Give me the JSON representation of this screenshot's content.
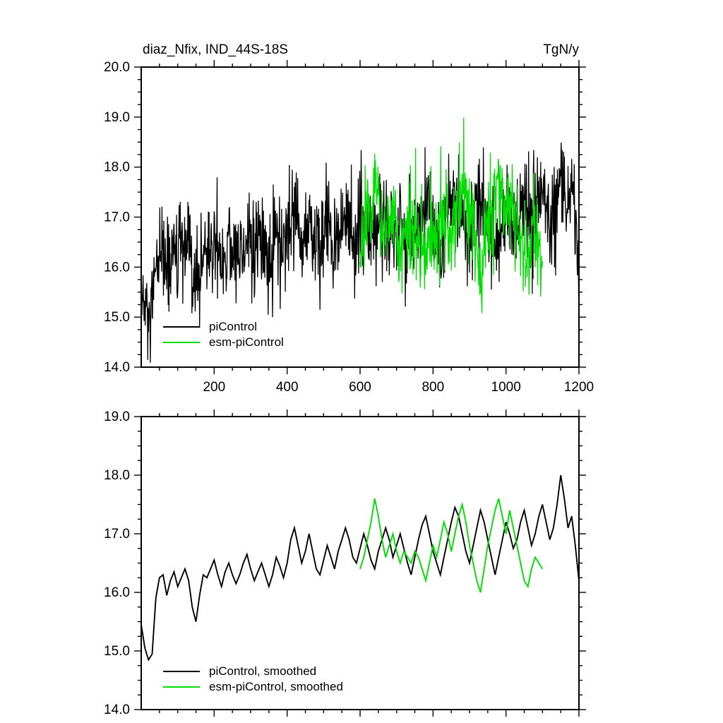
{
  "page": {
    "background": "#ffffff"
  },
  "chart_data": {
    "type": "line",
    "figure_title": "diaz_Nfix, IND_44S-18S",
    "units": "TgN/y",
    "colors": {
      "piControl": "#000000",
      "esm_piControl": "#00DE00"
    },
    "series_data": {
      "piControl_smoothed": {
        "x_start": 0,
        "x_step": 10,
        "values": [
          15.45,
          15.05,
          14.85,
          14.95,
          15.9,
          16.25,
          16.3,
          15.95,
          16.2,
          16.35,
          16.1,
          16.25,
          16.4,
          16.2,
          15.75,
          15.5,
          15.95,
          16.3,
          16.25,
          16.4,
          16.55,
          16.3,
          16.1,
          16.35,
          16.5,
          16.3,
          16.15,
          16.3,
          16.5,
          16.65,
          16.4,
          16.2,
          16.35,
          16.5,
          16.3,
          16.1,
          16.3,
          16.6,
          16.45,
          16.25,
          16.5,
          16.9,
          17.1,
          16.8,
          16.5,
          16.7,
          17.0,
          16.7,
          16.4,
          16.3,
          16.55,
          16.8,
          16.6,
          16.4,
          16.7,
          16.9,
          17.1,
          16.9,
          16.6,
          16.5,
          16.75,
          17.0,
          16.8,
          16.55,
          16.4,
          16.7,
          16.9,
          17.1,
          16.9,
          16.6,
          16.8,
          17.0,
          16.75,
          16.5,
          16.3,
          16.6,
          16.9,
          17.15,
          17.3,
          17.0,
          16.7,
          16.5,
          16.3,
          16.6,
          16.9,
          17.2,
          17.45,
          17.3,
          17.0,
          16.7,
          16.5,
          16.8,
          17.1,
          17.4,
          17.2,
          16.9,
          16.6,
          16.3,
          16.6,
          16.9,
          17.2,
          17.0,
          16.75,
          16.9,
          17.2,
          17.4,
          17.1,
          16.8,
          17.0,
          17.3,
          17.5,
          17.2,
          16.9,
          17.1,
          17.5,
          18.0,
          17.6,
          17.1,
          17.3,
          16.8,
          16.2
        ]
      },
      "esm_piControl_smoothed": {
        "x_start": 600,
        "x_step": 10,
        "values": [
          16.4,
          16.6,
          16.9,
          17.2,
          17.6,
          17.3,
          16.9,
          16.6,
          16.8,
          17.0,
          16.7,
          16.5,
          16.7,
          16.6,
          16.5,
          16.7,
          16.6,
          16.4,
          16.2,
          16.5,
          16.8,
          16.6,
          16.9,
          17.2,
          17.0,
          16.7,
          17.0,
          17.3,
          17.5,
          17.2,
          16.8,
          16.5,
          16.2,
          16.0,
          16.4,
          16.8,
          17.1,
          17.4,
          17.6,
          17.3,
          17.0,
          17.4,
          17.1,
          16.8,
          16.5,
          16.2,
          16.1,
          16.4,
          16.6,
          16.5,
          16.4
        ]
      }
    },
    "panels": [
      {
        "name": "raw",
        "title_left": "diaz_Nfix, IND_44S-18S",
        "title_right": "TgN/y",
        "x_axis": {
          "min": 0,
          "max": 1200,
          "major_ticks": [
            200,
            400,
            600,
            800,
            1000,
            1200
          ],
          "tick_labels": [
            "200",
            "400",
            "600",
            "800",
            "1000",
            "1200"
          ],
          "minor_step": 50,
          "show_labels": true
        },
        "y_axis": {
          "min": 14,
          "max": 20,
          "major_ticks": [
            14,
            15,
            16,
            17,
            18,
            19,
            20
          ],
          "tick_labels": [
            "14.0",
            "15.0",
            "16.0",
            "17.0",
            "18.0",
            "19.0",
            "20.0"
          ],
          "minor_step": 0.25
        },
        "legend": [
          {
            "label": "piControl",
            "color": "#000000"
          },
          {
            "label": "esm-piControl",
            "color": "#00DE00"
          }
        ],
        "series": [
          {
            "name": "piControl",
            "color": "#000000",
            "style": "raw",
            "data_key": "piControl_smoothed",
            "noise_sigma": 0.5,
            "noise_seed": 12345
          },
          {
            "name": "esm-piControl",
            "color": "#00DE00",
            "style": "raw",
            "data_key": "esm_piControl_smoothed",
            "noise_sigma": 0.52,
            "noise_seed": 20202
          }
        ]
      },
      {
        "name": "smoothed",
        "x_axis": {
          "min": 0,
          "max": 1200,
          "major_ticks": [
            200,
            400,
            600,
            800,
            1000,
            1200
          ],
          "tick_labels": [],
          "minor_step": 50,
          "show_labels": false
        },
        "y_axis": {
          "min": 14,
          "max": 19,
          "major_ticks": [
            14,
            15,
            16,
            17,
            18,
            19
          ],
          "tick_labels": [
            "14.0",
            "15.0",
            "16.0",
            "17.0",
            "18.0",
            "19.0"
          ],
          "minor_step": 0.25
        },
        "legend": [
          {
            "label": "piControl, smoothed",
            "color": "#000000"
          },
          {
            "label": "esm-piControl, smoothed",
            "color": "#00DE00"
          }
        ],
        "series": [
          {
            "name": "piControl, smoothed",
            "color": "#000000",
            "style": "smooth",
            "data_key": "piControl_smoothed"
          },
          {
            "name": "esm-piControl, smoothed",
            "color": "#00DE00",
            "style": "smooth",
            "data_key": "esm_piControl_smoothed"
          }
        ]
      }
    ]
  }
}
